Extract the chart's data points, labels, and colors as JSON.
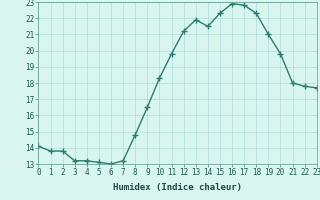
{
  "x": [
    0,
    1,
    2,
    3,
    4,
    5,
    6,
    7,
    8,
    9,
    10,
    11,
    12,
    13,
    14,
    15,
    16,
    17,
    18,
    19,
    20,
    21,
    22,
    23
  ],
  "y": [
    14.1,
    13.8,
    13.8,
    13.2,
    13.2,
    13.1,
    13.0,
    13.2,
    14.8,
    16.5,
    18.3,
    19.8,
    21.2,
    21.9,
    21.5,
    22.3,
    22.9,
    22.8,
    22.3,
    21.0,
    19.8,
    18.0,
    17.8,
    17.7
  ],
  "line_color": "#2e7d6e",
  "marker": "+",
  "bg_color": "#d8f5f0",
  "grid_color": "#b0ddd8",
  "xlabel": "Humidex (Indice chaleur)",
  "ylim": [
    13,
    23
  ],
  "xlim": [
    0,
    23
  ],
  "yticks": [
    13,
    14,
    15,
    16,
    17,
    18,
    19,
    20,
    21,
    22,
    23
  ],
  "xticks": [
    0,
    1,
    2,
    3,
    4,
    5,
    6,
    7,
    8,
    9,
    10,
    11,
    12,
    13,
    14,
    15,
    16,
    17,
    18,
    19,
    20,
    21,
    22,
    23
  ],
  "tick_fontsize": 5.5,
  "xlabel_fontsize": 6.5,
  "line_width": 1.0,
  "marker_size": 4
}
